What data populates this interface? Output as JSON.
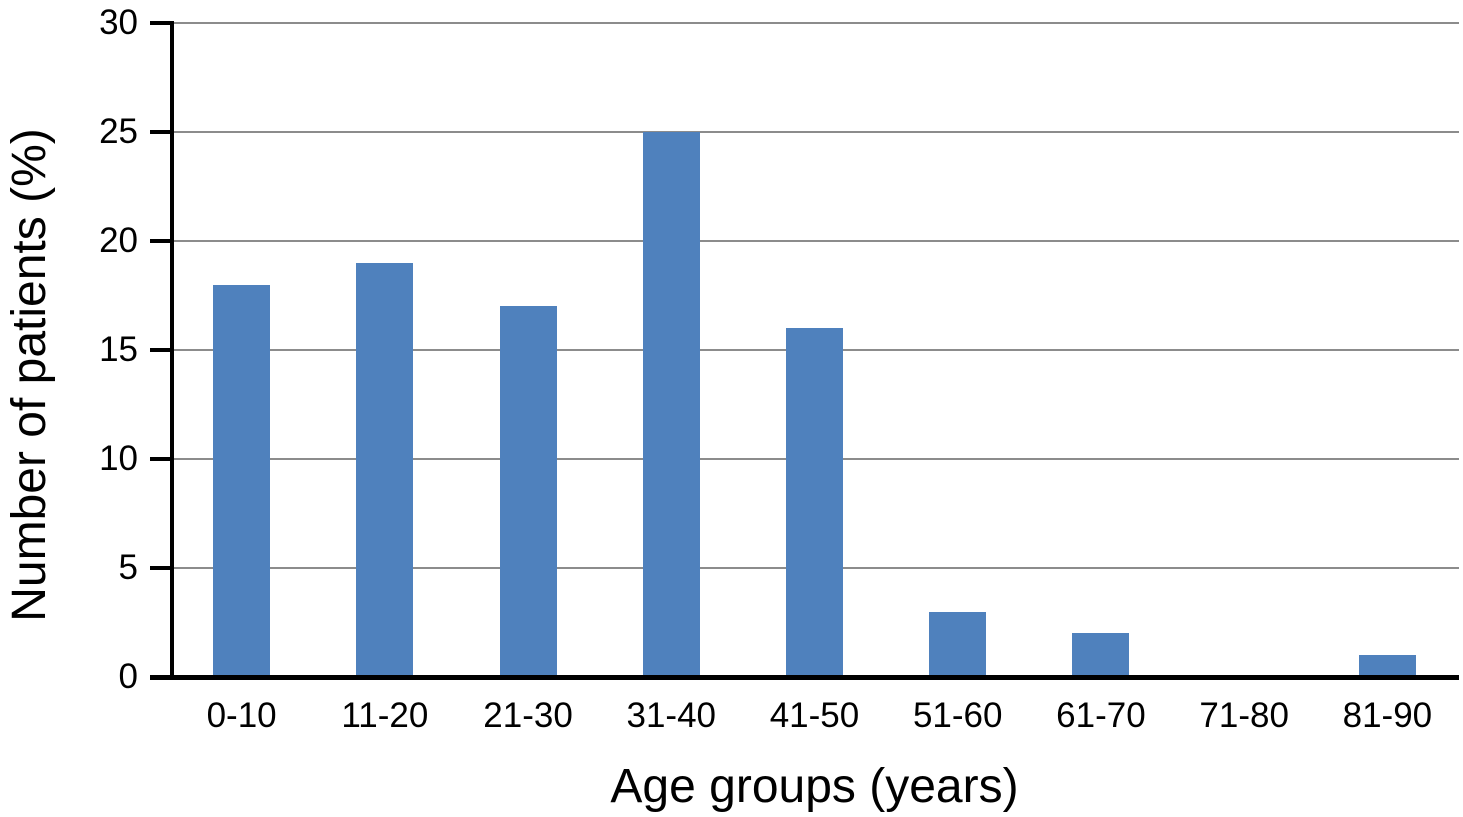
{
  "figure": {
    "background_color": "#ffffff"
  },
  "chart_data": {
    "type": "bar",
    "title": "",
    "categories": [
      "0-10",
      "11-20",
      "21-30",
      "31-40",
      "41-50",
      "51-60",
      "61-70",
      "71-80",
      "81-90"
    ],
    "values": [
      18,
      19,
      17,
      25,
      16,
      3,
      2,
      0,
      1
    ],
    "xlabel": "Age groups (years)",
    "ylabel": "Number of patients (%)",
    "ylim": [
      0,
      30
    ],
    "yticks": [
      0,
      5,
      10,
      15,
      20,
      25,
      30
    ],
    "grid": true,
    "legend": "none",
    "bar_color": "#4F81BD",
    "gridline_color": "#8C8C8C",
    "axis_color": "#000000",
    "text_color": "#000000"
  }
}
